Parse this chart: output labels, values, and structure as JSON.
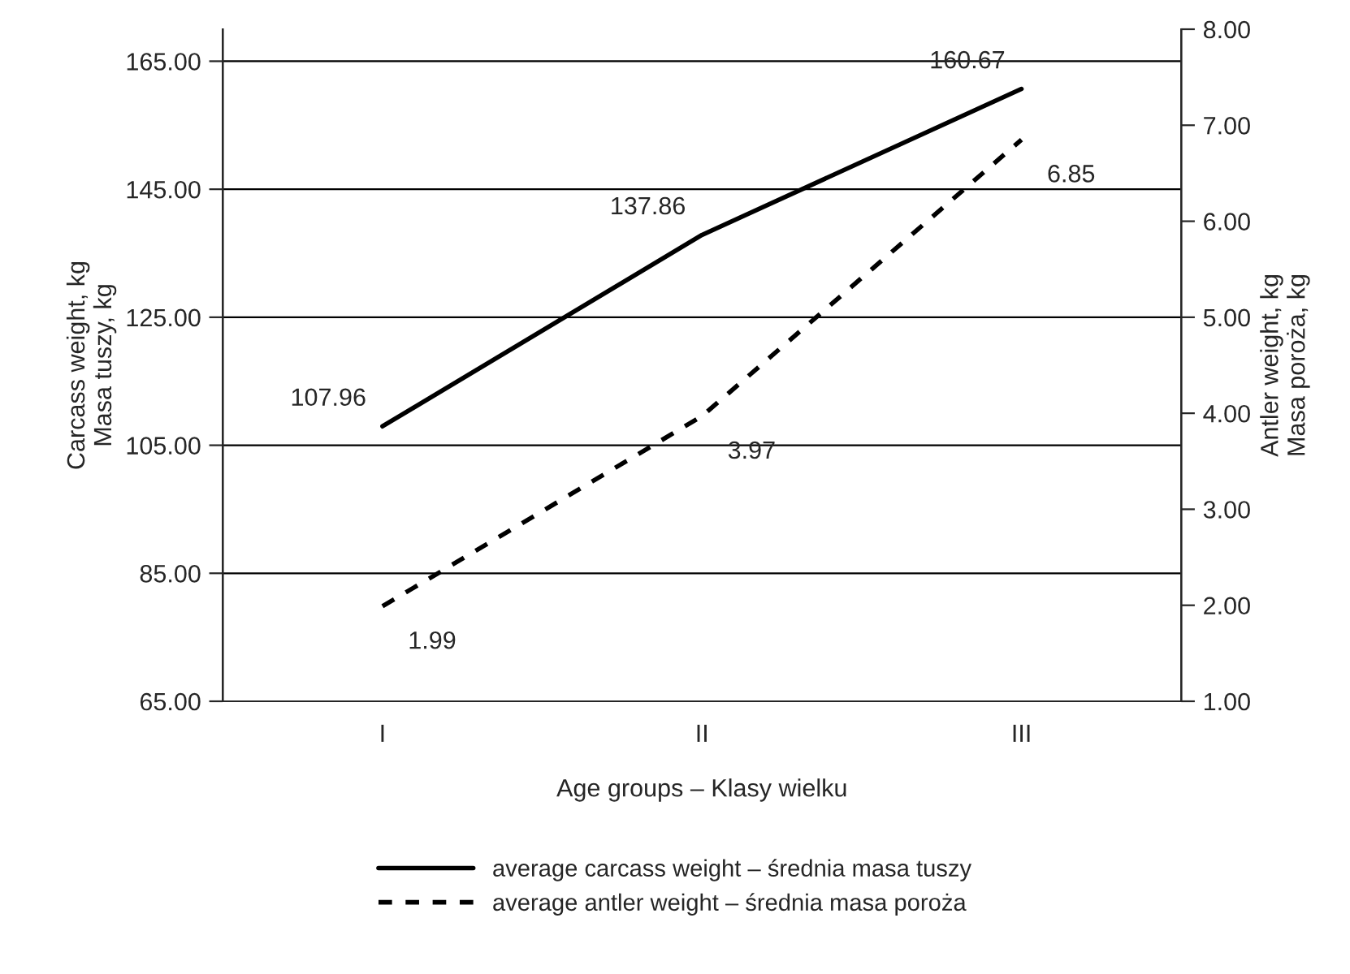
{
  "chart_data": {
    "type": "line",
    "xlabel": "Age groups – Klasy wielku",
    "ylabel": "Carcass weight, kg\nMasa tuszy, kg",
    "y2label": "Antler weight, kg\nMasa poroża, kg",
    "categories": [
      "I",
      "II",
      "III"
    ],
    "series": [
      {
        "name": "average carcass weight – średnia masa tuszy",
        "color": "#000000",
        "values": [
          107.96,
          137.86,
          160.67
        ],
        "line_style": "solid"
      },
      {
        "name": "average antler weight – średnia masa poroża",
        "color": "#000000",
        "values": [
          1.99,
          3.97,
          6.85
        ],
        "axis": "y2",
        "line_style": "dashed"
      }
    ],
    "ylim": [
      65,
      170
    ],
    "yticks": [
      {
        "value": 65,
        "label": "65.00"
      },
      {
        "value": 85,
        "label": "85.00"
      },
      {
        "value": 105,
        "label": "105.00"
      },
      {
        "value": 125,
        "label": "125.00"
      },
      {
        "value": 145,
        "label": "145.00"
      },
      {
        "value": 165,
        "label": "165.00"
      }
    ],
    "y2lim": [
      1,
      8
    ],
    "y2ticks": [
      {
        "value": 1,
        "label": "1.00"
      },
      {
        "value": 2,
        "label": "2.00"
      },
      {
        "value": 3,
        "label": "3.00"
      },
      {
        "value": 4,
        "label": "4.00"
      },
      {
        "value": 5,
        "label": "5.00"
      },
      {
        "value": 6,
        "label": "6.00"
      },
      {
        "value": 7,
        "label": "7.00"
      },
      {
        "value": 8,
        "label": "8.00"
      }
    ],
    "grid": "y",
    "data_labels": true,
    "legend": "bottom",
    "marker": "none"
  }
}
